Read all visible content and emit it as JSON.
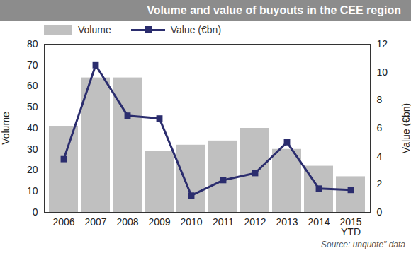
{
  "chart_data": {
    "type": "bar",
    "title": "Volume and value of buyouts in the CEE region",
    "source": "Source: unquote\" data",
    "categories": [
      "2006",
      "2007",
      "2008",
      "2009",
      "2010",
      "2011",
      "2012",
      "2013",
      "2014",
      "2015 YTD"
    ],
    "series": [
      {
        "name": "Volume",
        "type": "bar",
        "color": "#c0c0c0",
        "values": [
          41,
          64,
          64,
          29,
          32,
          34,
          40,
          30,
          22,
          17
        ]
      },
      {
        "name": "Value (€bn)",
        "type": "line",
        "marker": "square",
        "axis": "y2",
        "color": "#2b2d6e",
        "values": [
          3.8,
          10.5,
          6.9,
          6.7,
          1.2,
          2.3,
          2.8,
          5.0,
          1.7,
          1.6
        ]
      }
    ],
    "y_label": "Volume",
    "y2_label": "Value (€bn)",
    "ylim": [
      0,
      80
    ],
    "yticks": [
      0,
      10,
      20,
      30,
      40,
      50,
      60,
      70,
      80
    ],
    "y2lim": [
      0,
      12
    ],
    "y2ticks": [
      0,
      2,
      4,
      6,
      8,
      10,
      12
    ],
    "grid": false,
    "legend": "top-left"
  }
}
